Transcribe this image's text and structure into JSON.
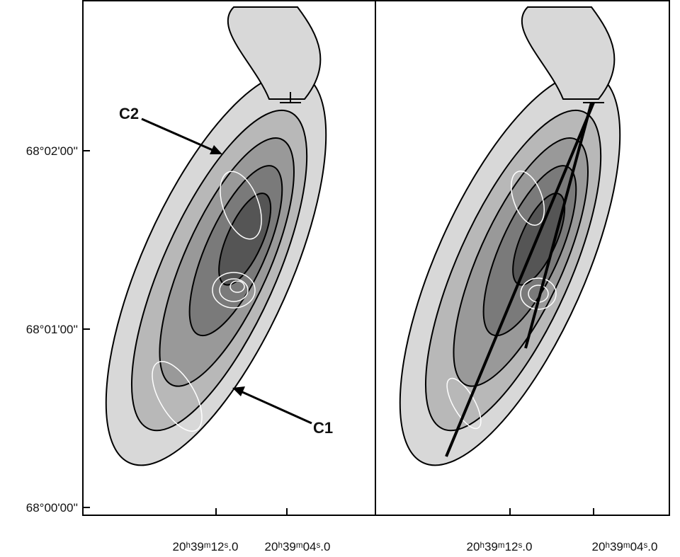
{
  "y_axis": {
    "ticks": [
      "68°02'00''",
      "68°01'00''",
      "68°00'00''"
    ]
  },
  "panels": [
    {
      "x_ticks": [
        "20ʰ39ᵐ12ˢ.0",
        "20ʰ39ᵐ04ˢ.0"
      ],
      "annotations": [
        "C2",
        "C1"
      ]
    },
    {
      "x_ticks": [
        "20ʰ39ᵐ12ˢ.0",
        "20ʰ39ᵐ04ˢ.0"
      ]
    }
  ]
}
